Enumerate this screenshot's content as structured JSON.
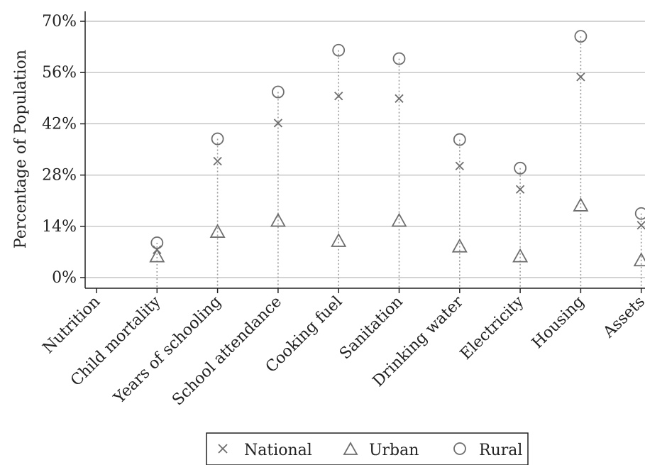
{
  "chart_data": {
    "type": "scatter",
    "ylabel": "Percentage of Population",
    "ylim": [
      0,
      70
    ],
    "yticks": [
      "0%",
      "14%",
      "28%",
      "42%",
      "56%",
      "70%"
    ],
    "ytick_values": [
      0,
      14,
      28,
      42,
      56,
      70
    ],
    "categories": [
      "Nutrition",
      "Child mortality",
      "Years of schooling",
      "School attendance",
      "Cooking fuel",
      "Sanitation",
      "Drinking water",
      "Electricity",
      "Housing",
      "Assets"
    ],
    "series": [
      {
        "name": "National",
        "marker": "x",
        "values": [
          null,
          7.6,
          31.8,
          42.2,
          49.6,
          48.9,
          30.5,
          24.1,
          54.8,
          14.3
        ]
      },
      {
        "name": "Urban",
        "marker": "triangle",
        "values": [
          null,
          5.7,
          12.4,
          15.4,
          9.9,
          15.4,
          8.4,
          5.7,
          19.6,
          4.6
        ]
      },
      {
        "name": "Rural",
        "marker": "circle",
        "values": [
          null,
          9.5,
          37.9,
          50.7,
          62.1,
          59.8,
          37.7,
          29.9,
          65.9,
          17.5
        ]
      }
    ],
    "grid": true,
    "legend_position": "bottom",
    "colors": {
      "marker": "#6e6e6e",
      "grid": "#b9b9b9",
      "axis": "#222222",
      "dotted": "#9a9a9a"
    }
  }
}
